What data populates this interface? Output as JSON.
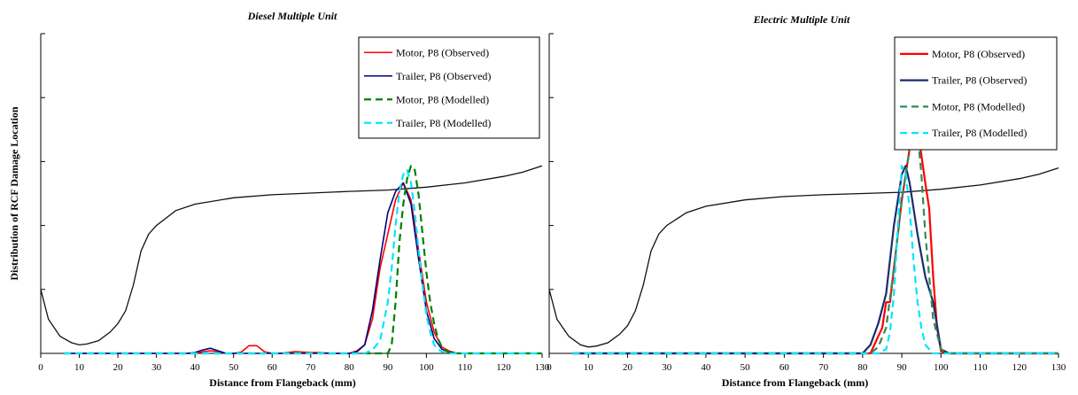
{
  "chart_data": [
    {
      "type": "line",
      "title": "Diesel Multiple Unit",
      "xlabel": "Distance from Flangeback (mm)",
      "ylabel": "Distribution of RCF Damage Location",
      "xlim": [
        0,
        130
      ],
      "x_ticks": [
        "0",
        "10",
        "20",
        "30",
        "40",
        "50",
        "60",
        "70",
        "80",
        "90",
        "100",
        "110",
        "120",
        "130"
      ],
      "y_ticks_count": 5,
      "legend_position": "top-right",
      "profile": {
        "x": [
          0,
          2,
          5,
          8,
          10,
          12,
          15,
          18,
          20,
          22,
          24,
          26,
          28,
          30,
          35,
          40,
          50,
          60,
          70,
          80,
          90,
          100,
          110,
          120,
          125,
          130
        ],
        "y": [
          0.15,
          0.08,
          0.04,
          0.025,
          0.02,
          0.022,
          0.03,
          0.05,
          0.07,
          0.1,
          0.16,
          0.24,
          0.28,
          0.3,
          0.335,
          0.35,
          0.365,
          0.372,
          0.376,
          0.38,
          0.383,
          0.39,
          0.4,
          0.415,
          0.425,
          0.44
        ]
      },
      "series": [
        {
          "name": "Motor, P8 (Observed)",
          "color": "#ff0000",
          "dash": "",
          "width": 1.6,
          "x": [
            6,
            38,
            40,
            42,
            44,
            46,
            48,
            50,
            52,
            54,
            56,
            58,
            60,
            62,
            64,
            66,
            68,
            70,
            72,
            74,
            76,
            78,
            80,
            82,
            84,
            86,
            88,
            90,
            92,
            94,
            96,
            98,
            100,
            102,
            104,
            106,
            108,
            110,
            130
          ],
          "y": [
            0,
            0,
            0,
            0.004,
            0.006,
            0.004,
            0,
            0,
            0.003,
            0.018,
            0.018,
            0.004,
            0,
            0,
            0.002,
            0.004,
            0.003,
            0.002,
            0.002,
            0.001,
            0,
            0,
            0,
            0.006,
            0.02,
            0.08,
            0.2,
            0.28,
            0.36,
            0.4,
            0.36,
            0.24,
            0.12,
            0.05,
            0.015,
            0.005,
            0,
            0,
            0
          ]
        },
        {
          "name": "Trailer, P8 (Observed)",
          "color": "#000080",
          "dash": "",
          "width": 1.6,
          "x": [
            6,
            38,
            40,
            42,
            44,
            46,
            48,
            50,
            52,
            54,
            56,
            80,
            82,
            84,
            86,
            88,
            90,
            92,
            94,
            96,
            98,
            100,
            102,
            104,
            106,
            108,
            130
          ],
          "y": [
            0,
            0,
            0.002,
            0.008,
            0.012,
            0.006,
            0,
            0,
            0,
            0,
            0,
            0,
            0.004,
            0.02,
            0.1,
            0.22,
            0.33,
            0.38,
            0.4,
            0.35,
            0.22,
            0.1,
            0.035,
            0.01,
            0.003,
            0,
            0
          ]
        },
        {
          "name": "Motor, P8 (Modelled)",
          "color": "#008000",
          "dash": "8 5",
          "width": 2.2,
          "x": [
            6,
            90,
            91,
            92,
            93,
            94,
            95,
            96,
            97,
            98,
            99,
            100,
            101,
            102,
            103,
            104,
            105,
            106,
            108,
            130
          ],
          "y": [
            0,
            0,
            0.02,
            0.12,
            0.26,
            0.35,
            0.41,
            0.44,
            0.43,
            0.37,
            0.28,
            0.19,
            0.12,
            0.07,
            0.035,
            0.015,
            0.006,
            0.002,
            0,
            0
          ]
        },
        {
          "name": "Trailer, P8 (Modelled)",
          "color": "#00e5ff",
          "dash": "8 5",
          "width": 2.2,
          "x": [
            6,
            84,
            86,
            88,
            90,
            91,
            92,
            93,
            94,
            95,
            96,
            97,
            98,
            99,
            100,
            101,
            102,
            103,
            104,
            106,
            108,
            130
          ],
          "y": [
            0,
            0,
            0.008,
            0.03,
            0.12,
            0.2,
            0.3,
            0.38,
            0.42,
            0.43,
            0.4,
            0.33,
            0.24,
            0.16,
            0.09,
            0.05,
            0.02,
            0.01,
            0.004,
            0,
            0,
            0
          ]
        }
      ]
    },
    {
      "type": "line",
      "title": "Electric Multiple Unit",
      "xlabel": "Distance from Flangeback (mm)",
      "ylabel": "",
      "xlim": [
        0,
        130
      ],
      "x_ticks": [
        "0",
        "10",
        "20",
        "30",
        "40",
        "50",
        "60",
        "70",
        "80",
        "90",
        "100",
        "110",
        "120",
        "130"
      ],
      "y_ticks_count": 5,
      "legend_position": "top-right",
      "profile": {
        "x": [
          0,
          2,
          5,
          8,
          10,
          12,
          15,
          18,
          20,
          22,
          24,
          26,
          28,
          30,
          35,
          40,
          50,
          60,
          70,
          80,
          90,
          100,
          110,
          120,
          125,
          130
        ],
        "y": [
          0.15,
          0.08,
          0.04,
          0.02,
          0.015,
          0.017,
          0.025,
          0.045,
          0.065,
          0.1,
          0.16,
          0.24,
          0.28,
          0.3,
          0.33,
          0.345,
          0.36,
          0.368,
          0.372,
          0.375,
          0.378,
          0.385,
          0.395,
          0.41,
          0.42,
          0.435
        ]
      },
      "series": [
        {
          "name": "Motor, P8 (Observed)",
          "color": "#ff0000",
          "dash": "",
          "width": 2.2,
          "x": [
            6,
            80,
            82,
            84,
            85,
            86,
            87,
            88,
            90,
            92,
            93,
            94,
            96,
            97,
            98,
            99,
            100,
            102,
            130
          ],
          "y": [
            0,
            0,
            0,
            0.04,
            0.06,
            0.12,
            0.12,
            0.2,
            0.36,
            0.48,
            0.55,
            0.53,
            0.4,
            0.34,
            0.18,
            0.06,
            0.005,
            0,
            0
          ]
        },
        {
          "name": "Trailer, P8 (Observed)",
          "color": "#1a2d6b",
          "dash": "",
          "width": 2.2,
          "x": [
            6,
            80,
            82,
            84,
            86,
            88,
            90,
            91,
            92,
            94,
            96,
            98,
            100,
            102,
            130
          ],
          "y": [
            0,
            0,
            0.02,
            0.07,
            0.14,
            0.3,
            0.42,
            0.44,
            0.4,
            0.28,
            0.18,
            0.12,
            0.01,
            0,
            0
          ]
        },
        {
          "name": "Motor, P8 (Modelled)",
          "color": "#2e8b57",
          "dash": "8 5",
          "width": 2.2,
          "x": [
            6,
            82,
            84,
            86,
            88,
            90,
            92,
            93,
            94,
            95,
            96,
            98,
            100,
            102,
            130
          ],
          "y": [
            0,
            0,
            0.015,
            0.06,
            0.2,
            0.36,
            0.48,
            0.54,
            0.52,
            0.42,
            0.28,
            0.08,
            0.01,
            0,
            0
          ]
        },
        {
          "name": "Trailer, P8 (Modelled)",
          "color": "#00e5ff",
          "dash": "8 5",
          "width": 2.2,
          "x": [
            6,
            84,
            86,
            87,
            88,
            89,
            90,
            91,
            92,
            93,
            94,
            95,
            96,
            98,
            100,
            130
          ],
          "y": [
            0,
            0,
            0.01,
            0.05,
            0.14,
            0.3,
            0.44,
            0.42,
            0.34,
            0.22,
            0.12,
            0.06,
            0.02,
            0,
            0,
            0
          ]
        }
      ]
    }
  ]
}
